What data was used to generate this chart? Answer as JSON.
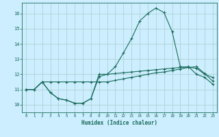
{
  "xlabel": "Humidex (Indice chaleur)",
  "bg_color": "#cceeff",
  "grid_color": "#aacccc",
  "line_color": "#1a6b5a",
  "xlim": [
    -0.5,
    23.5
  ],
  "ylim": [
    9.5,
    16.7
  ],
  "yticks": [
    10,
    11,
    12,
    13,
    14,
    15,
    16
  ],
  "xticks": [
    0,
    1,
    2,
    3,
    4,
    5,
    6,
    7,
    8,
    9,
    10,
    11,
    12,
    13,
    14,
    15,
    16,
    17,
    18,
    19,
    20,
    21,
    22,
    23
  ],
  "series1_x": [
    0,
    1,
    2,
    3,
    4,
    5,
    6,
    7,
    8,
    9,
    10,
    11,
    12,
    13,
    14,
    15,
    16,
    17,
    18,
    19,
    20,
    21,
    22,
    23
  ],
  "series1_y": [
    11.0,
    11.0,
    11.5,
    10.8,
    10.4,
    10.3,
    10.1,
    10.1,
    10.4,
    12.0,
    12.0,
    12.05,
    12.1,
    12.15,
    12.2,
    12.25,
    12.3,
    12.35,
    12.4,
    12.45,
    12.5,
    12.0,
    11.8,
    11.35
  ],
  "series2_x": [
    0,
    1,
    2,
    3,
    4,
    5,
    6,
    7,
    8,
    9,
    10,
    11,
    12,
    13,
    14,
    15,
    16,
    17,
    18,
    19,
    20,
    21,
    22,
    23
  ],
  "series2_y": [
    11.0,
    11.0,
    11.5,
    10.8,
    10.4,
    10.3,
    10.1,
    10.1,
    10.4,
    11.85,
    12.0,
    12.5,
    13.4,
    14.35,
    15.5,
    16.0,
    16.35,
    16.05,
    14.8,
    12.5,
    12.45,
    12.4,
    12.0,
    11.8
  ],
  "series3_x": [
    0,
    1,
    2,
    3,
    4,
    5,
    6,
    7,
    8,
    9,
    10,
    11,
    12,
    13,
    14,
    15,
    16,
    17,
    18,
    19,
    20,
    21,
    22,
    23
  ],
  "series3_y": [
    11.0,
    11.0,
    11.5,
    11.5,
    11.5,
    11.5,
    11.5,
    11.5,
    11.5,
    11.5,
    11.5,
    11.6,
    11.7,
    11.8,
    11.9,
    12.0,
    12.1,
    12.15,
    12.25,
    12.35,
    12.45,
    12.5,
    12.05,
    11.55
  ]
}
